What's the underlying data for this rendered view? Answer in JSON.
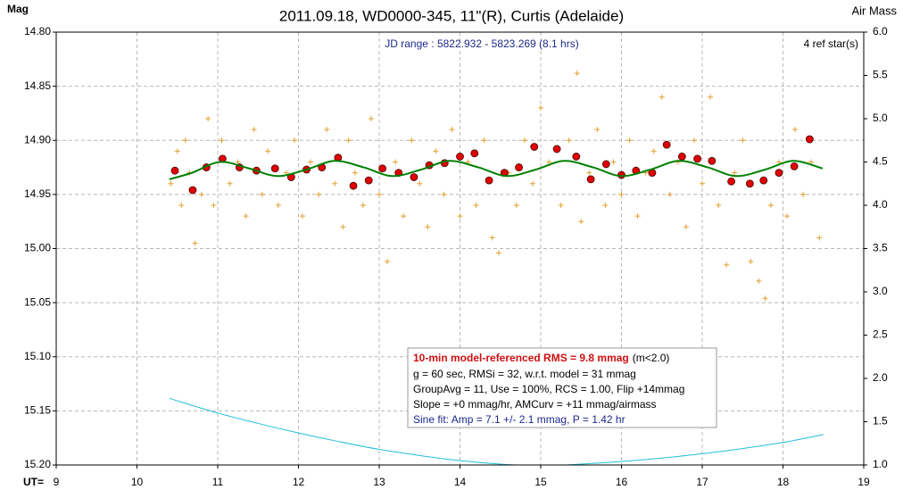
{
  "chart_data": {
    "type": "scatter",
    "title": "2011.09.18, WD0000-345, 11\"(R), Curtis (Adelaide)",
    "ylabel": "Mag",
    "y2label": "Air Mass",
    "xlabel": "UT=",
    "annotations": [
      "JD range : 5822.932 - 5823.269 (8.1 hrs)",
      "4 ref star(s)"
    ],
    "stats_box": {
      "headline": "10-min model-referenced RMS = 9.8 mmag",
      "headline_note": "(m<2.0)",
      "lines": [
        "g = 60 sec, RMSi = 32, w.r.t. model = 31 mmag",
        "GroupAvg = 11, Use = 100%, RCS = 1.00, Flip +14mmag",
        "Slope = +0 mmag/hr, AMCurv = +11 mmag/airmass"
      ],
      "fit": "Sine fit: Amp = 7.1 +/- 2.1 mmag, P = 1.42 hr"
    },
    "xlim": [
      9,
      19
    ],
    "xticks": [
      9,
      10,
      11,
      12,
      13,
      14,
      15,
      16,
      17,
      18,
      19
    ],
    "ylim": [
      14.8,
      15.2
    ],
    "y_inverted": true,
    "yticks": [
      {
        "value": 14.8,
        "label": "14.80"
      },
      {
        "value": 14.85,
        "label": "14.85"
      },
      {
        "value": 14.9,
        "label": "14.90"
      },
      {
        "value": 14.95,
        "label": "14.95"
      },
      {
        "value": 15.0,
        "label": "15.00"
      },
      {
        "value": 15.05,
        "label": "15.05"
      },
      {
        "value": 15.1,
        "label": "15.10"
      },
      {
        "value": 15.15,
        "label": "15.15"
      },
      {
        "value": 15.2,
        "label": "15.20"
      }
    ],
    "y2lim": [
      1.0,
      6.0
    ],
    "y2ticks": [
      {
        "value": 6.0,
        "label": "6.0"
      },
      {
        "value": 5.5,
        "label": "5.5"
      },
      {
        "value": 5.0,
        "label": "5.0"
      },
      {
        "value": 4.5,
        "label": "4.5"
      },
      {
        "value": 4.0,
        "label": "4.0"
      },
      {
        "value": 3.5,
        "label": "3.5"
      },
      {
        "value": 3.0,
        "label": "3.0"
      },
      {
        "value": 2.5,
        "label": "2.5"
      },
      {
        "value": 2.0,
        "label": "2.0"
      },
      {
        "value": 1.5,
        "label": "1.5"
      },
      {
        "value": 1.0,
        "label": "1.0"
      }
    ],
    "grid": true,
    "series": [
      {
        "marker": "plus",
        "color": "#e0a030",
        "x": [
          10.42,
          10.5,
          10.55,
          10.6,
          10.65,
          10.72,
          10.8,
          10.88,
          10.95,
          11.05,
          11.15,
          11.25,
          11.35,
          11.45,
          11.55,
          11.62,
          11.75,
          11.85,
          11.95,
          12.05,
          12.15,
          12.25,
          12.35,
          12.45,
          12.55,
          12.62,
          12.7,
          12.8,
          12.9,
          13.0,
          13.1,
          13.2,
          13.3,
          13.4,
          13.5,
          13.6,
          13.7,
          13.8,
          13.9,
          14.0,
          14.1,
          14.2,
          14.3,
          14.4,
          14.48,
          14.6,
          14.7,
          14.8,
          14.9,
          15.0,
          15.1,
          15.25,
          15.35,
          15.45,
          15.5,
          15.6,
          15.7,
          15.8,
          15.9,
          16.0,
          16.1,
          16.2,
          16.3,
          16.4,
          16.5,
          16.6,
          16.7,
          16.8,
          16.9,
          17.0,
          17.1,
          17.2,
          17.3,
          17.4,
          17.5,
          17.6,
          17.7,
          17.78,
          17.85,
          17.95,
          18.05,
          18.15,
          18.25,
          18.35,
          18.45
        ],
        "values": [
          14.94,
          14.91,
          14.96,
          14.9,
          14.93,
          14.995,
          14.95,
          14.88,
          14.96,
          14.9,
          14.94,
          14.92,
          14.97,
          14.89,
          14.95,
          14.91,
          14.96,
          14.93,
          14.9,
          14.97,
          14.92,
          14.95,
          14.89,
          14.94,
          14.98,
          14.9,
          14.93,
          14.96,
          14.88,
          14.95,
          15.012,
          14.92,
          14.97,
          14.9,
          14.94,
          14.98,
          14.91,
          14.95,
          14.89,
          14.97,
          14.92,
          14.96,
          14.9,
          14.99,
          15.004,
          14.93,
          14.96,
          14.9,
          14.94,
          14.87,
          14.92,
          14.96,
          14.9,
          14.838,
          14.975,
          14.93,
          14.89,
          14.96,
          14.92,
          14.95,
          14.9,
          14.97,
          14.93,
          14.91,
          14.86,
          14.95,
          14.92,
          14.98,
          14.9,
          14.94,
          14.86,
          14.96,
          15.015,
          14.93,
          14.9,
          15.012,
          15.03,
          15.046,
          14.96,
          14.92,
          14.97,
          14.89,
          14.95,
          14.92,
          14.99
        ]
      },
      {
        "marker": "dot",
        "color": "#e00000",
        "x": [
          10.47,
          10.69,
          10.86,
          11.06,
          11.27,
          11.48,
          11.71,
          11.91,
          12.1,
          12.29,
          12.49,
          12.68,
          12.87,
          13.04,
          13.24,
          13.43,
          13.62,
          13.81,
          14.0,
          14.18,
          14.36,
          14.55,
          14.73,
          14.92,
          15.2,
          15.44,
          15.62,
          15.81,
          16.0,
          16.18,
          16.38,
          16.56,
          16.75,
          16.94,
          17.12,
          17.36,
          17.59,
          17.76,
          17.95,
          18.14,
          18.33
        ],
        "values": [
          14.928,
          14.946,
          14.925,
          14.917,
          14.925,
          14.928,
          14.926,
          14.934,
          14.927,
          14.925,
          14.916,
          14.942,
          14.937,
          14.926,
          14.93,
          14.934,
          14.923,
          14.921,
          14.915,
          14.912,
          14.937,
          14.93,
          14.925,
          14.906,
          14.908,
          14.915,
          14.936,
          14.922,
          14.932,
          14.928,
          14.93,
          14.904,
          14.915,
          14.917,
          14.919,
          14.938,
          14.94,
          14.937,
          14.93,
          14.924,
          14.899
        ]
      },
      {
        "marker": "line",
        "color": "#008000",
        "x": [
          10.4,
          10.68,
          11.03,
          11.39,
          11.74,
          12.1,
          12.45,
          12.81,
          13.16,
          13.52,
          13.87,
          14.23,
          14.58,
          14.94,
          15.29,
          15.65,
          16.0,
          16.36,
          16.71,
          17.07,
          17.42,
          17.78,
          18.13,
          18.49
        ],
        "values": [
          14.936,
          14.93,
          14.92,
          14.926,
          14.933,
          14.927,
          14.919,
          14.925,
          14.933,
          14.927,
          14.919,
          14.925,
          14.933,
          14.927,
          14.919,
          14.925,
          14.933,
          14.927,
          14.919,
          14.925,
          14.933,
          14.927,
          14.919,
          14.926
        ]
      },
      {
        "marker": "line",
        "color": "#20c0d8",
        "axis": "y2",
        "x": [
          10.4,
          11,
          11.5,
          12,
          12.5,
          13,
          13.5,
          14,
          14.5,
          15,
          15.5,
          16,
          16.5,
          17,
          17.5,
          18,
          18.5
        ],
        "values": [
          1.77,
          1.6,
          1.48,
          1.37,
          1.27,
          1.18,
          1.11,
          1.05,
          1.01,
          0.99,
          1.01,
          1.04,
          1.08,
          1.13,
          1.19,
          1.26,
          1.35
        ]
      }
    ]
  }
}
